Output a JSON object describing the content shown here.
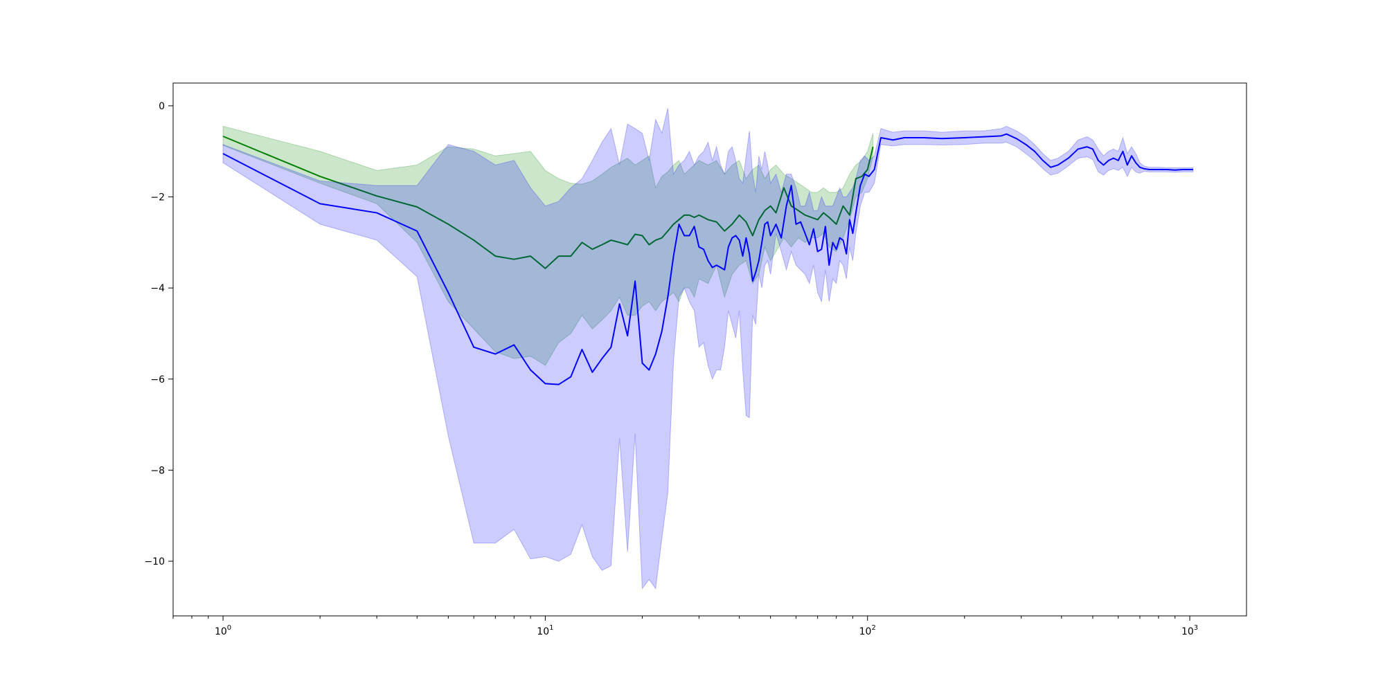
{
  "chart_data": {
    "type": "line",
    "title": "",
    "xlabel": "",
    "ylabel": "",
    "xscale": "log",
    "xlim": [
      0.7,
      1500
    ],
    "ylim": [
      -11.2,
      0.5
    ],
    "grid": false,
    "legend": "none",
    "x_ticks": [
      {
        "value": 1,
        "base": "10",
        "exp": "0"
      },
      {
        "value": 10,
        "base": "10",
        "exp": "1"
      },
      {
        "value": 100,
        "base": "10",
        "exp": "2"
      },
      {
        "value": 1000,
        "base": "10",
        "exp": "3"
      }
    ],
    "y_ticks": [
      {
        "value": 0,
        "label": "0"
      },
      {
        "value": -2,
        "label": "−2"
      },
      {
        "value": -4,
        "label": "−4"
      },
      {
        "value": -6,
        "label": "−6"
      },
      {
        "value": -8,
        "label": "−8"
      },
      {
        "value": -10,
        "label": "−10"
      }
    ],
    "series": [
      {
        "color": "#008000",
        "band_color": "#008000",
        "band_opacity": 0.2,
        "x": [
          1,
          2,
          3,
          4,
          5,
          6,
          7,
          8,
          9,
          10,
          11,
          12,
          13,
          14,
          15,
          16,
          17,
          18,
          19,
          20,
          21,
          22,
          23,
          24,
          25,
          26,
          27,
          28,
          29,
          30,
          32,
          34,
          36,
          38,
          40,
          42,
          44,
          46,
          48,
          50,
          52,
          55,
          58,
          61,
          64,
          67,
          70,
          73,
          76,
          80,
          84,
          88,
          92,
          96,
          100,
          104
        ],
        "y": [
          -0.67,
          -1.55,
          -1.98,
          -2.22,
          -2.6,
          -2.95,
          -3.3,
          -3.37,
          -3.3,
          -3.57,
          -3.3,
          -3.3,
          -3.0,
          -3.15,
          -3.05,
          -2.95,
          -3.0,
          -3.05,
          -2.82,
          -2.85,
          -3.05,
          -2.95,
          -2.9,
          -2.75,
          -2.6,
          -2.5,
          -2.4,
          -2.4,
          -2.45,
          -2.4,
          -2.5,
          -2.55,
          -2.75,
          -2.6,
          -2.4,
          -2.55,
          -2.85,
          -2.5,
          -2.3,
          -2.2,
          -2.35,
          -1.8,
          -2.2,
          -2.3,
          -2.4,
          -2.45,
          -2.5,
          -2.35,
          -2.45,
          -2.6,
          -2.2,
          -2.4,
          -1.6,
          -1.55,
          -1.4,
          -0.9
        ],
        "upper": [
          -0.45,
          -1.0,
          -1.42,
          -1.3,
          -0.9,
          -0.95,
          -1.1,
          -1.05,
          -1.0,
          -1.42,
          -1.6,
          -1.7,
          -1.72,
          -1.65,
          -1.5,
          -1.35,
          -1.25,
          -1.15,
          -1.3,
          -1.2,
          -1.1,
          -1.8,
          -1.55,
          -1.45,
          -1.3,
          -1.2,
          -1.5,
          -1.4,
          -1.3,
          -1.2,
          -1.3,
          -1.2,
          -1.5,
          -1.3,
          -1.2,
          -1.6,
          -1.4,
          -1.3,
          -1.6,
          -1.4,
          -1.3,
          -1.5,
          -1.6,
          -1.7,
          -1.8,
          -1.9,
          -1.9,
          -1.8,
          -1.9,
          -1.9,
          -1.8,
          -1.5,
          -1.3,
          -1.2,
          -1.0,
          -0.6
        ],
        "lower": [
          -0.87,
          -1.7,
          -2.15,
          -3.0,
          -4.3,
          -4.9,
          -5.4,
          -5.55,
          -5.5,
          -5.7,
          -5.2,
          -5.0,
          -4.6,
          -4.9,
          -4.7,
          -4.5,
          -4.2,
          -4.6,
          -4.6,
          -4.4,
          -4.3,
          -4.5,
          -4.3,
          -4.2,
          -4.1,
          -4.3,
          -4.0,
          -4.0,
          -4.2,
          -3.8,
          -3.9,
          -3.5,
          -4.2,
          -3.7,
          -3.5,
          -3.4,
          -3.9,
          -3.7,
          -3.1,
          -3.4,
          -3.2,
          -2.9,
          -3.1,
          -2.9,
          -3.0,
          -2.9,
          -2.9,
          -2.8,
          -3.1,
          -3.2,
          -2.9,
          -2.5,
          -2.0,
          -1.9,
          -1.6,
          -1.1
        ]
      },
      {
        "color": "#0000ff",
        "band_color": "#0000ff",
        "band_opacity": 0.2,
        "x": [
          1,
          2,
          3,
          4,
          5,
          6,
          7,
          8,
          9,
          10,
          11,
          12,
          13,
          14,
          15,
          16,
          17,
          18,
          19,
          20,
          21,
          22,
          23,
          24,
          25,
          26,
          27,
          28,
          29,
          30,
          31,
          32,
          33,
          34,
          35,
          36,
          37,
          38,
          39,
          40,
          41,
          42,
          43,
          44,
          45,
          46,
          47,
          48,
          49,
          50,
          52,
          54,
          56,
          58,
          60,
          62,
          64,
          66,
          68,
          70,
          72,
          74,
          76,
          78,
          80,
          82,
          84,
          86,
          88,
          90,
          92,
          95,
          98,
          101,
          105,
          110,
          120,
          130,
          150,
          170,
          200,
          230,
          260,
          270,
          290,
          310,
          330,
          350,
          370,
          390,
          420,
          450,
          480,
          500,
          520,
          540,
          560,
          580,
          600,
          620,
          640,
          660,
          680,
          700,
          720,
          750,
          800,
          850,
          900,
          950,
          1000,
          1024
        ],
        "y": [
          -1.05,
          -2.15,
          -2.35,
          -2.75,
          -4.1,
          -5.3,
          -5.45,
          -5.25,
          -5.8,
          -6.1,
          -6.12,
          -5.95,
          -5.35,
          -5.85,
          -5.55,
          -5.3,
          -4.35,
          -5.05,
          -3.85,
          -5.65,
          -5.8,
          -5.45,
          -4.95,
          -4.2,
          -3.3,
          -2.6,
          -2.85,
          -2.85,
          -2.65,
          -3.1,
          -3.15,
          -3.4,
          -3.55,
          -3.5,
          -3.55,
          -3.6,
          -3.1,
          -2.9,
          -2.85,
          -2.95,
          -3.3,
          -2.9,
          -3.25,
          -3.85,
          -3.65,
          -3.4,
          -3.0,
          -2.6,
          -2.55,
          -2.85,
          -2.6,
          -2.9,
          -2.2,
          -1.75,
          -2.6,
          -2.55,
          -2.8,
          -3.05,
          -2.7,
          -3.2,
          -3.15,
          -2.65,
          -3.5,
          -3.0,
          -3.15,
          -2.9,
          -2.95,
          -3.25,
          -2.5,
          -2.8,
          -2.35,
          -1.75,
          -1.5,
          -1.55,
          -1.4,
          -0.7,
          -0.75,
          -0.7,
          -0.7,
          -0.72,
          -0.7,
          -0.68,
          -0.66,
          -0.62,
          -0.72,
          -0.85,
          -1.0,
          -1.2,
          -1.35,
          -1.3,
          -1.15,
          -0.95,
          -0.9,
          -0.95,
          -1.2,
          -1.3,
          -1.2,
          -1.15,
          -1.2,
          -1.0,
          -1.3,
          -1.1,
          -1.25,
          -1.35,
          -1.38,
          -1.4,
          -1.4,
          -1.4,
          -1.41,
          -1.4,
          -1.4,
          -1.4
        ],
        "upper": [
          -0.85,
          -1.65,
          -1.75,
          -1.75,
          -0.85,
          -1.0,
          -1.3,
          -1.2,
          -1.8,
          -2.2,
          -2.1,
          -1.8,
          -1.6,
          -1.2,
          -0.8,
          -0.5,
          -1.3,
          -0.4,
          -0.5,
          -0.6,
          -1.2,
          -0.3,
          -0.6,
          -0.05,
          -1.5,
          -1.3,
          -1.2,
          -1.0,
          -1.3,
          -1.1,
          -1.0,
          -0.8,
          -1.2,
          -0.9,
          -1.3,
          -1.5,
          -1.0,
          -0.9,
          -1.2,
          -1.6,
          -1.7,
          -1.1,
          -0.55,
          -1.5,
          -1.9,
          -1.1,
          -1.4,
          -1.0,
          -1.3,
          -1.7,
          -1.5,
          -1.9,
          -1.5,
          -1.5,
          -1.8,
          -2.2,
          -2.2,
          -1.9,
          -2.3,
          -2.3,
          -2.0,
          -2.2,
          -2.2,
          -2.2,
          -2.0,
          -1.8,
          -2.0,
          -2.0,
          -1.9,
          -1.8,
          -1.6,
          -1.2,
          -1.1,
          -1.2,
          -1.1,
          -0.5,
          -0.58,
          -0.55,
          -0.55,
          -0.58,
          -0.55,
          -0.55,
          -0.5,
          -0.45,
          -0.55,
          -0.68,
          -0.85,
          -1.05,
          -1.2,
          -1.15,
          -1.0,
          -0.75,
          -0.68,
          -0.75,
          -0.95,
          -1.1,
          -1.0,
          -0.95,
          -1.0,
          -0.7,
          -1.05,
          -0.9,
          -1.05,
          -1.25,
          -1.32,
          -1.35,
          -1.35,
          -1.36,
          -1.36,
          -1.36,
          -1.36,
          -1.36
        ],
        "lower": [
          -1.25,
          -2.6,
          -2.95,
          -3.75,
          -7.25,
          -9.6,
          -9.6,
          -9.3,
          -9.95,
          -9.9,
          -10.0,
          -9.85,
          -9.2,
          -9.9,
          -10.2,
          -10.1,
          -7.3,
          -9.8,
          -7.2,
          -10.6,
          -10.4,
          -10.6,
          -9.5,
          -8.5,
          -5.6,
          -4.2,
          -4.0,
          -4.3,
          -4.5,
          -5.3,
          -5.2,
          -5.7,
          -6.0,
          -5.8,
          -5.8,
          -5.3,
          -4.5,
          -4.8,
          -5.1,
          -4.5,
          -5.8,
          -6.8,
          -6.85,
          -4.6,
          -4.8,
          -3.7,
          -4.0,
          -3.5,
          -3.4,
          -3.7,
          -2.8,
          -3.2,
          -3.6,
          -3.2,
          -3.5,
          -3.6,
          -3.7,
          -3.9,
          -3.5,
          -4.1,
          -4.3,
          -3.6,
          -4.3,
          -3.8,
          -3.9,
          -3.4,
          -3.5,
          -3.8,
          -3.1,
          -3.4,
          -2.8,
          -2.2,
          -1.9,
          -1.9,
          -1.7,
          -0.85,
          -0.88,
          -0.85,
          -0.85,
          -0.86,
          -0.85,
          -0.82,
          -0.82,
          -0.8,
          -0.9,
          -1.05,
          -1.2,
          -1.38,
          -1.52,
          -1.48,
          -1.32,
          -1.15,
          -1.12,
          -1.18,
          -1.45,
          -1.52,
          -1.42,
          -1.38,
          -1.42,
          -1.35,
          -1.55,
          -1.35,
          -1.45,
          -1.48,
          -1.44,
          -1.45,
          -1.45,
          -1.45,
          -1.46,
          -1.45,
          -1.45,
          -1.45
        ]
      }
    ]
  }
}
